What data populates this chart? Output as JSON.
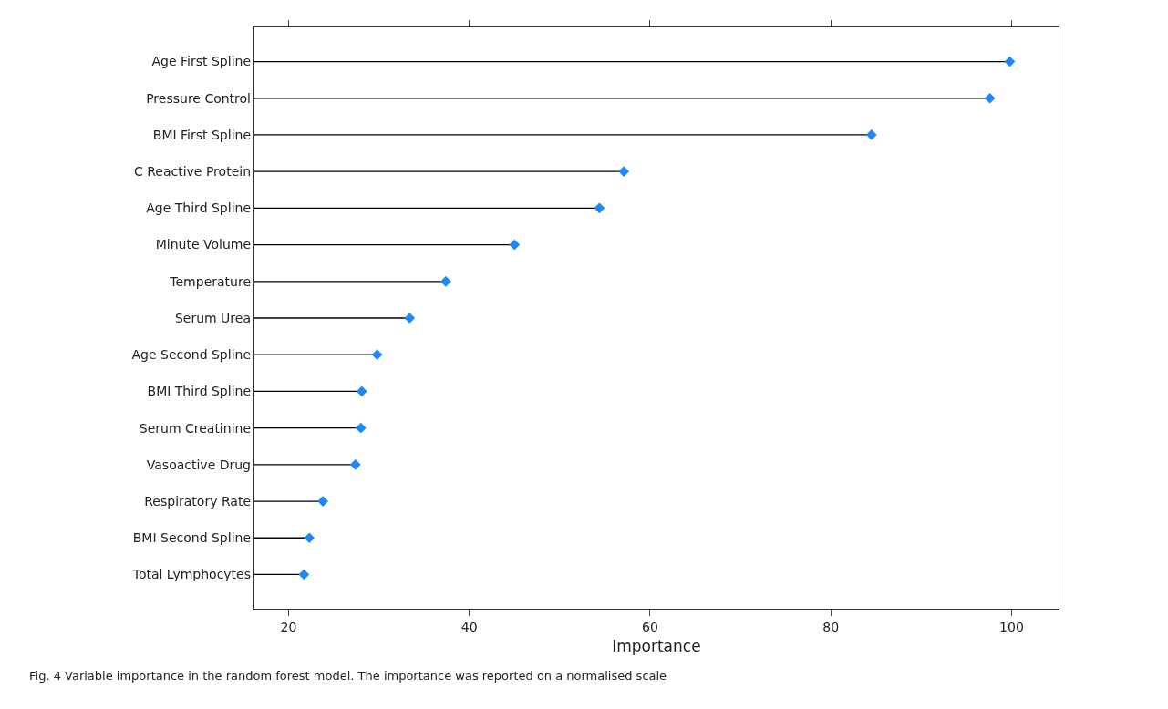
{
  "chart_data": {
    "type": "lollipop",
    "orientation": "horizontal",
    "xlabel": "Importance",
    "categories": [
      "Age First Spline",
      "Pressure Control",
      "BMI First Spline",
      "C Reactive Protein",
      "Age Third Spline",
      "Minute Volume",
      "Temperature",
      "Serum Urea",
      "Age Second Spline",
      "BMI Third Spline",
      "Serum Creatinine",
      "Vasoactive Drug",
      "Respiratory Rate",
      "BMI Second Spline",
      "Total Lymphocytes"
    ],
    "values": [
      99.8,
      97.6,
      84.5,
      57.1,
      54.4,
      45.0,
      37.4,
      33.4,
      29.8,
      28.1,
      28.0,
      27.4,
      23.8,
      22.3,
      21.7
    ],
    "color": "#1e88f5",
    "marker": "diamond",
    "xlim": [
      16.2,
      105.2
    ],
    "xticks": [
      20,
      40,
      60,
      80,
      100
    ],
    "annotations": [
      "Fig. 4 Variable importance in the random forest model. The importance was reported on a normalised scale"
    ]
  }
}
